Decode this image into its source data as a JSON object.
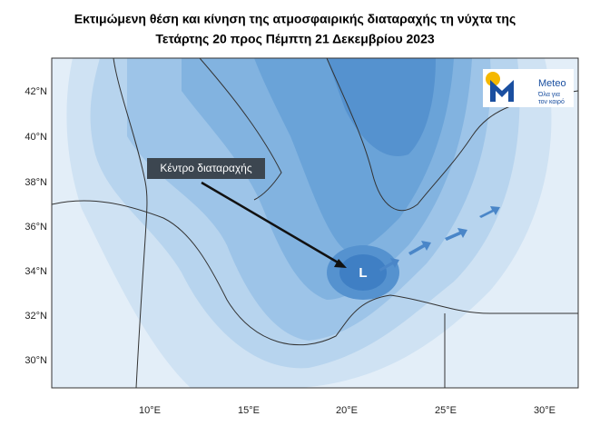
{
  "header": {
    "title_line1": "Εκτιμώμενη θέση και κίνηση της ατμοσφαιρικής διαταραχής τη νύχτα της",
    "title_line2": "Τετάρτης 20 προς Πέμπτη 21 Δεκεμβρίου 2023"
  },
  "map": {
    "lat_labels": [
      "42°N",
      "40°N",
      "38°N",
      "36°N",
      "34°N",
      "32°N",
      "30°N"
    ],
    "lon_labels": [
      "10°E",
      "15°E",
      "20°E",
      "25°E",
      "30°E"
    ],
    "annotation": "Κέντρο διαταραχής",
    "low_label": "L"
  },
  "logo": {
    "name": "Meteo",
    "tagline_line1": "Όλα για",
    "tagline_line2": "τον καιρό"
  }
}
